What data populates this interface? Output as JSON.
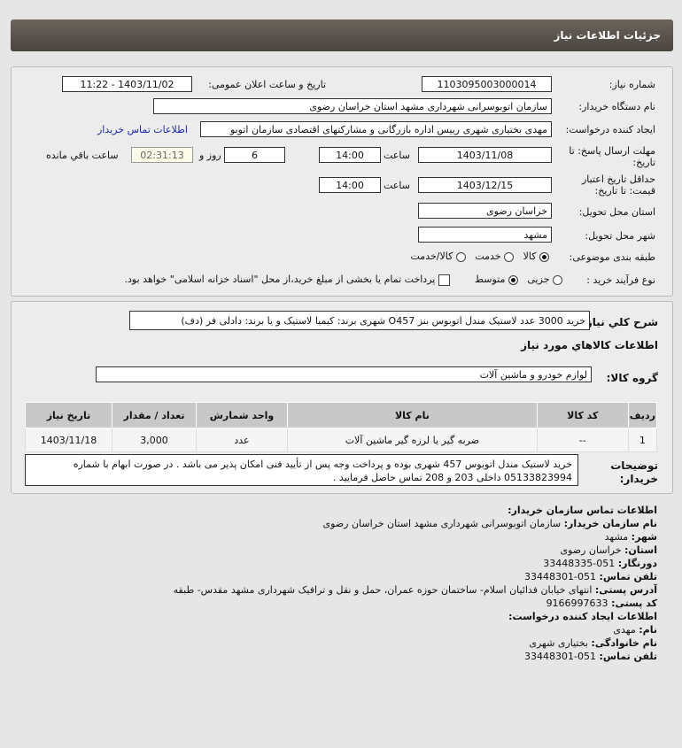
{
  "header": {
    "title": "جزئیات اطلاعات نیاز"
  },
  "form": {
    "need_number_label": "شماره نیاز:",
    "need_number": "1103095003000014",
    "announce_label": "تاریخ و ساعت اعلان عمومی:",
    "announce_value": "1403/11/02 - 11:22",
    "buyer_org_label": "نام دستگاه خریدار:",
    "buyer_org": "سازمان اتوبوسرانی شهرداری مشهد استان خراسان رضوی",
    "creator_label": "ایجاد کننده درخواست:",
    "creator": "مهدی بختیاری شهری رییس اداره بازرگانی و مشارکتهای اقتصادی سازمان اتوبو",
    "contact_link": "اطلاعات تماس خریدار",
    "deadline_label": "مهلت ارسال پاسخ: تا تاریخ:",
    "deadline_date": "1403/11/08",
    "time_label": "ساعت",
    "deadline_time": "14:00",
    "days": "6",
    "days_label": "روز و",
    "remaining": "02:31:13",
    "remaining_label": "ساعت باقي مانده",
    "validity_label": "حداقل تاریخ اعتبار قیمت: تا تاریخ:",
    "validity_date": "1403/12/15",
    "validity_time": "14:00",
    "province_label": "استان محل تحویل:",
    "province": "خراسان رضوی",
    "city_label": "شهر محل تحویل:",
    "city": "مشهد",
    "category_label": "طبقه بندی موضوعی:",
    "category_options": [
      "کالا",
      "خدمت",
      "کالا/خدمت"
    ],
    "category_selected": "کالا",
    "process_label": "نوع فرآیند خرید :",
    "process_options": [
      "جزیی",
      "متوسط"
    ],
    "process_selected": "متوسط",
    "payment_note": "پرداخت تمام یا بخشی از مبلغ خرید،از محل \"اسناد خزانه اسلامی\" خواهد بود."
  },
  "details": {
    "summary_label": "شرح كلي نياز:",
    "summary": "خرید 3000 عدد لاستیک مندل اتوبوس بنز O457 شهری برند: کیمیا لاستیک و یا برند: دادلی فر (دف)",
    "goods_info_title": "اطلاعات كالاهاي مورد نياز",
    "group_label": "گروه کالا:",
    "group": "لوازم خودرو و ماشین آلات",
    "table": {
      "headers": [
        "ردیف",
        "کد کالا",
        "نام کالا",
        "واحد شمارش",
        "تعداد / مقدار",
        "تاریخ نیاز"
      ],
      "rows": [
        [
          "1",
          "--",
          "ضربه گیر یا لرزه گیر ماشین آلات",
          "عدد",
          "3,000",
          "1403/11/18"
        ]
      ]
    },
    "notes_label": "توضیحات خریدار:",
    "notes": "خرید لاستیک مندل اتوبوس 457 شهری بوده و پرداخت وجه پس از تأیید فنی امکان پذیر می باشد . در صورت ابهام با شماره 05133823994 داخلی 203 و 208 تماس حاصل فرمایید ."
  },
  "contact": {
    "title": "اطلاعات تماس سازمان خریدار:",
    "org_label": "نام سازمان خریدار:",
    "org": "سازمان اتوبوسرانی شهرداری مشهد استان خراسان رضوی",
    "city_label": "شهر:",
    "city": "مشهد",
    "province_label": "استان:",
    "province": "خراسان رضوی",
    "fax_label": "دورنگار:",
    "fax": "051-33448335",
    "phone_label": "تلفن تماس:",
    "phone": "051-33448301",
    "address_label": "آدرس پستی:",
    "address": "انتهای خیابان فدائیان اسلام- ساختمان حوزه عمران، حمل و نقل و ترافیک شهرداری مشهد مقدس- طبقه",
    "postal_label": "کد پستی:",
    "postal": "9166997633",
    "creator_title": "اطلاعات ایجاد کننده درخواست:",
    "name_label": "نام:",
    "name": "مهدی",
    "family_label": "نام خانوادگی:",
    "family": "بختیاری شهری",
    "creator_phone_label": "تلفن تماس:",
    "creator_phone": "051-33448301"
  }
}
